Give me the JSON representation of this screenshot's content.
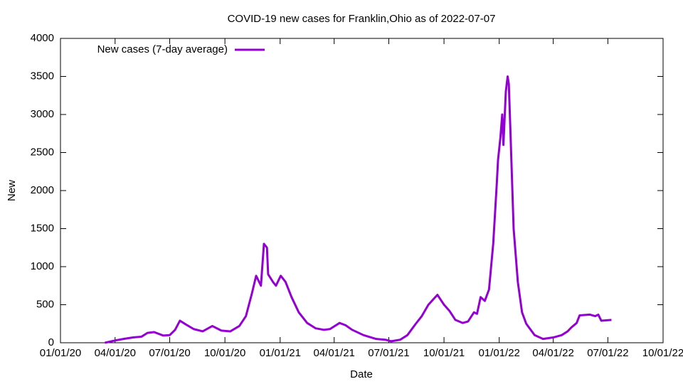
{
  "chart_data": {
    "type": "line",
    "title": "COVID-19 new cases for Franklin,Ohio as of 2022-07-07",
    "x_label": "Date",
    "y_label": "New",
    "x": [
      "2020-03-15",
      "2020-04-01",
      "2020-04-15",
      "2020-05-01",
      "2020-05-15",
      "2020-05-25",
      "2020-06-05",
      "2020-06-20",
      "2020-07-01",
      "2020-07-10",
      "2020-07-18",
      "2020-07-28",
      "2020-08-10",
      "2020-08-25",
      "2020-09-10",
      "2020-09-25",
      "2020-10-10",
      "2020-10-25",
      "2020-11-05",
      "2020-11-15",
      "2020-11-22",
      "2020-11-30",
      "2020-12-05",
      "2020-12-10",
      "2020-12-12",
      "2020-12-20",
      "2020-12-25",
      "2021-01-02",
      "2021-01-10",
      "2021-01-20",
      "2021-02-01",
      "2021-02-15",
      "2021-03-01",
      "2021-03-15",
      "2021-03-25",
      "2021-04-10",
      "2021-04-20",
      "2021-05-01",
      "2021-05-20",
      "2021-06-10",
      "2021-06-25",
      "2021-07-05",
      "2021-07-20",
      "2021-08-01",
      "2021-08-15",
      "2021-08-25",
      "2021-09-05",
      "2021-09-20",
      "2021-10-01",
      "2021-10-10",
      "2021-10-20",
      "2021-11-01",
      "2021-11-10",
      "2021-11-20",
      "2021-11-25",
      "2021-12-01",
      "2021-12-08",
      "2021-12-15",
      "2021-12-22",
      "2021-12-28",
      "2021-12-30",
      "2022-01-03",
      "2022-01-06",
      "2022-01-08",
      "2022-01-12",
      "2022-01-15",
      "2022-01-17",
      "2022-01-20",
      "2022-01-25",
      "2022-02-01",
      "2022-02-08",
      "2022-02-15",
      "2022-03-01",
      "2022-03-15",
      "2022-04-01",
      "2022-04-15",
      "2022-04-25",
      "2022-05-01",
      "2022-05-10",
      "2022-05-15",
      "2022-06-01",
      "2022-06-10",
      "2022-06-15",
      "2022-06-20",
      "2022-07-07"
    ],
    "series": [
      {
        "name": "New cases (7-day average)",
        "color": "#9400d3",
        "values": [
          0,
          30,
          50,
          70,
          80,
          130,
          140,
          95,
          100,
          170,
          290,
          240,
          180,
          150,
          220,
          160,
          150,
          220,
          350,
          650,
          880,
          750,
          1300,
          1250,
          900,
          800,
          750,
          880,
          800,
          600,
          400,
          260,
          190,
          170,
          180,
          260,
          230,
          170,
          100,
          50,
          40,
          20,
          40,
          100,
          250,
          350,
          500,
          630,
          500,
          420,
          300,
          260,
          280,
          400,
          380,
          600,
          550,
          700,
          1300,
          2100,
          2400,
          2700,
          3000,
          2600,
          3300,
          3500,
          3400,
          2700,
          1500,
          800,
          400,
          250,
          100,
          50,
          70,
          100,
          150,
          200,
          260,
          360,
          370,
          350,
          370,
          290,
          300
        ]
      }
    ],
    "xlim": [
      "2020-01-01",
      "2022-10-01"
    ],
    "xticks": [
      {
        "value": "2020-01-01",
        "label": "01/01/20"
      },
      {
        "value": "2020-04-01",
        "label": "04/01/20"
      },
      {
        "value": "2020-07-01",
        "label": "07/01/20"
      },
      {
        "value": "2020-10-01",
        "label": "10/01/20"
      },
      {
        "value": "2021-01-01",
        "label": "01/01/21"
      },
      {
        "value": "2021-04-01",
        "label": "04/01/21"
      },
      {
        "value": "2021-07-01",
        "label": "07/01/21"
      },
      {
        "value": "2021-10-01",
        "label": "10/01/21"
      },
      {
        "value": "2022-01-01",
        "label": "01/01/22"
      },
      {
        "value": "2022-04-01",
        "label": "04/01/22"
      },
      {
        "value": "2022-07-01",
        "label": "07/01/22"
      },
      {
        "value": "2022-10-01",
        "label": "10/01/22"
      }
    ],
    "ylim": [
      0,
      4000
    ],
    "yticks": [
      0,
      500,
      1000,
      1500,
      2000,
      2500,
      3000,
      3500,
      4000
    ],
    "legend": "top-left"
  }
}
